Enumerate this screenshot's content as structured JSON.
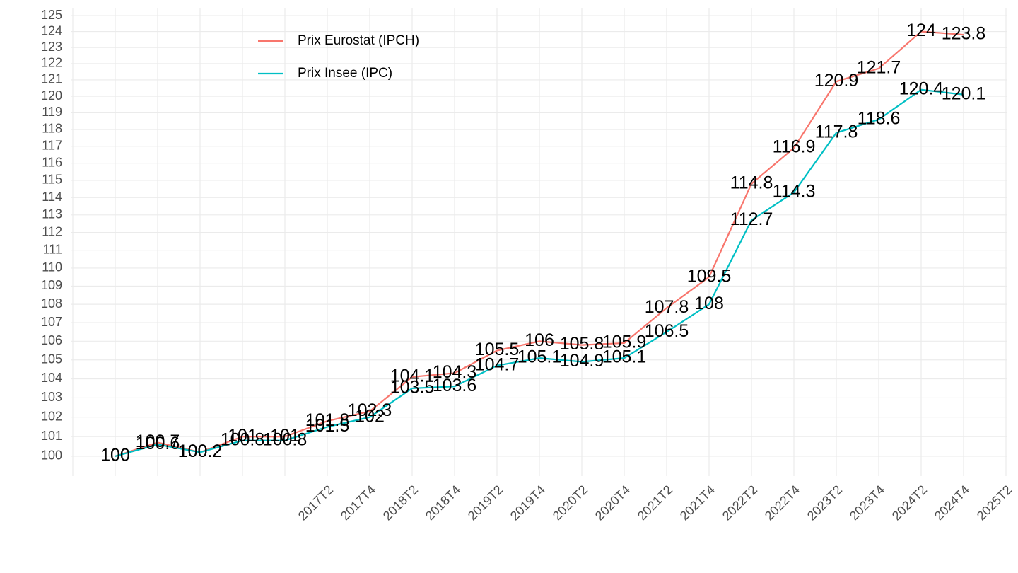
{
  "chart_data": {
    "type": "line",
    "categories": [
      null,
      null,
      null,
      null,
      null,
      null,
      "2017T2",
      "2017T4",
      "2018T2",
      "2018T4",
      "2019T2",
      "2019T4",
      "2020T2",
      "2020T4",
      "2021T2",
      "2021T4",
      "2022T2",
      "2022T4",
      "2023T2",
      "2023T4",
      "2024T2",
      "2024T4",
      "2025T2"
    ],
    "series": [
      {
        "name": "Prix Eurostat (IPCH)",
        "color": "#F8766D",
        "values": [
          null,
          100,
          100.7,
          100.2,
          101,
          101,
          101.8,
          102.3,
          104.1,
          104.3,
          105.5,
          106,
          105.8,
          105.9,
          107.8,
          109.5,
          114.8,
          116.9,
          120.9,
          121.7,
          124,
          123.8,
          null
        ]
      },
      {
        "name": "Prix Insee (IPC)",
        "color": "#00BFC4",
        "values": [
          null,
          100,
          100.6,
          100.2,
          100.8,
          100.8,
          101.5,
          102,
          103.5,
          103.6,
          104.7,
          105.1,
          104.9,
          105.1,
          106.5,
          108,
          112.7,
          114.3,
          117.8,
          118.6,
          120.4,
          120.1,
          null
        ]
      }
    ],
    "ylim": [
      99,
      125.5
    ],
    "yticks": [
      100,
      101,
      102,
      103,
      104,
      105,
      106,
      107,
      108,
      109,
      110,
      111,
      112,
      113,
      114,
      115,
      116,
      117,
      118,
      119,
      120,
      121,
      122,
      123,
      124,
      125
    ],
    "log_y": true,
    "grid": true,
    "legend": "top-left"
  }
}
